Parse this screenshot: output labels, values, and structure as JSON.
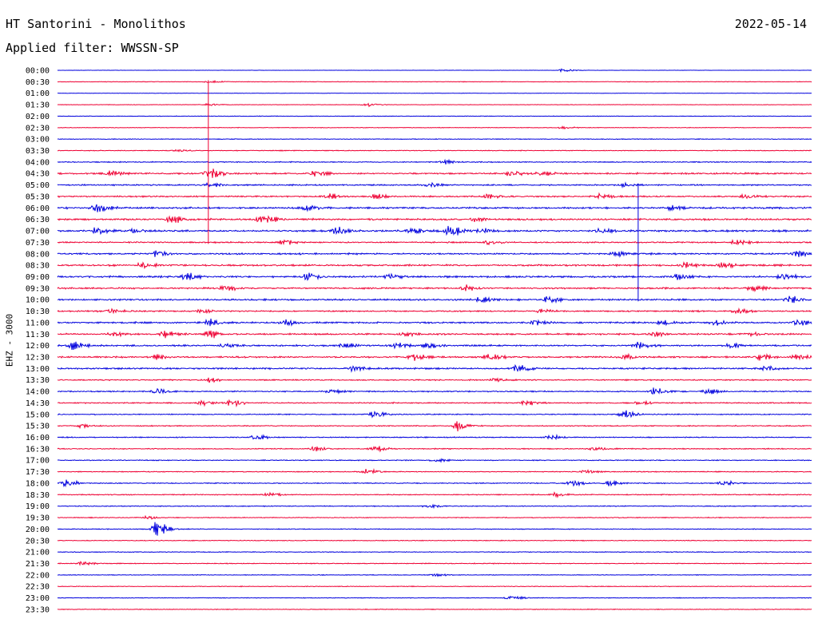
{
  "header": {
    "station": "HT Santorini - Monolithos",
    "date": "2022-05-14",
    "filter_line": "Applied filter: WWSSN-SP"
  },
  "channel_label": "EHZ - 3000",
  "colors": {
    "trace_a": "#0000dd",
    "trace_b": "#ee0033",
    "text": "#000000",
    "background": "#ffffff"
  },
  "chart_data": {
    "type": "line",
    "description_kind": "helicorder",
    "row_labels": [
      "00:00",
      "00:30",
      "01:00",
      "01:30",
      "02:00",
      "02:30",
      "03:00",
      "03:30",
      "04:00",
      "04:30",
      "05:00",
      "05:30",
      "06:00",
      "06:30",
      "07:00",
      "07:30",
      "08:00",
      "08:30",
      "09:00",
      "09:30",
      "10:00",
      "10:30",
      "11:00",
      "11:30",
      "12:00",
      "12:30",
      "13:00",
      "13:30",
      "14:00",
      "14:30",
      "15:00",
      "15:30",
      "16:00",
      "16:30",
      "17:00",
      "17:30",
      "18:00",
      "18:30",
      "19:00",
      "19:30",
      "20:00",
      "20:30",
      "21:00",
      "21:30",
      "22:00",
      "22:30",
      "23:00",
      "23:30"
    ],
    "row_minutes": 30,
    "alternating_colors": [
      "#0000dd",
      "#ee0033"
    ],
    "noise_levels": [
      0.3,
      0.6,
      0.4,
      0.5,
      0.6,
      0.6,
      0.7,
      0.8,
      1.0,
      1.6,
      1.4,
      1.4,
      1.8,
      1.8,
      1.8,
      1.4,
      1.6,
      1.8,
      1.8,
      1.6,
      1.6,
      1.4,
      1.6,
      1.6,
      1.6,
      1.6,
      1.6,
      1.2,
      1.2,
      1.2,
      1.0,
      1.0,
      1.0,
      1.0,
      0.9,
      0.9,
      1.0,
      1.0,
      0.9,
      0.8,
      0.8,
      0.8,
      0.8,
      0.8,
      0.7,
      0.7,
      0.7,
      0.7
    ],
    "events": [
      {
        "row": 0,
        "t": 0.67,
        "amp": 3
      },
      {
        "row": 1,
        "t": 0.2,
        "amp": 2
      },
      {
        "row": 3,
        "t": 0.2,
        "amp": 2
      },
      {
        "row": 3,
        "t": 0.41,
        "amp": 3
      },
      {
        "row": 5,
        "t": 0.67,
        "amp": 2
      },
      {
        "row": 7,
        "t": 0.16,
        "amp": 2
      },
      {
        "row": 8,
        "t": 0.51,
        "amp": 4
      },
      {
        "row": 9,
        "t": 0.07,
        "amp": 4
      },
      {
        "row": 9,
        "t": 0.2,
        "amp": 8
      },
      {
        "row": 9,
        "t": 0.34,
        "amp": 4
      },
      {
        "row": 9,
        "t": 0.6,
        "amp": 5
      },
      {
        "row": 9,
        "t": 0.64,
        "amp": 3
      },
      {
        "row": 10,
        "t": 0.2,
        "amp": 3
      },
      {
        "row": 10,
        "t": 0.49,
        "amp": 3
      },
      {
        "row": 10,
        "t": 0.75,
        "amp": 3
      },
      {
        "row": 11,
        "t": 0.36,
        "amp": 4
      },
      {
        "row": 11,
        "t": 0.42,
        "amp": 4
      },
      {
        "row": 11,
        "t": 0.57,
        "amp": 4
      },
      {
        "row": 11,
        "t": 0.72,
        "amp": 4
      },
      {
        "row": 11,
        "t": 0.91,
        "amp": 3
      },
      {
        "row": 12,
        "t": 0.05,
        "amp": 8
      },
      {
        "row": 12,
        "t": 0.33,
        "amp": 4
      },
      {
        "row": 12,
        "t": 0.81,
        "amp": 5
      },
      {
        "row": 13,
        "t": 0.15,
        "amp": 6
      },
      {
        "row": 13,
        "t": 0.27,
        "amp": 7
      },
      {
        "row": 13,
        "t": 0.55,
        "amp": 4
      },
      {
        "row": 14,
        "t": 0.05,
        "amp": 5
      },
      {
        "row": 14,
        "t": 0.1,
        "amp": 4
      },
      {
        "row": 14,
        "t": 0.37,
        "amp": 6
      },
      {
        "row": 14,
        "t": 0.47,
        "amp": 4
      },
      {
        "row": 14,
        "t": 0.52,
        "amp": 9
      },
      {
        "row": 14,
        "t": 0.56,
        "amp": 4
      },
      {
        "row": 14,
        "t": 0.72,
        "amp": 4
      },
      {
        "row": 15,
        "t": 0.3,
        "amp": 4
      },
      {
        "row": 15,
        "t": 0.57,
        "amp": 4
      },
      {
        "row": 15,
        "t": 0.9,
        "amp": 4
      },
      {
        "row": 16,
        "t": 0.13,
        "amp": 5
      },
      {
        "row": 16,
        "t": 0.74,
        "amp": 4
      },
      {
        "row": 16,
        "t": 0.98,
        "amp": 5
      },
      {
        "row": 17,
        "t": 0.11,
        "amp": 4
      },
      {
        "row": 17,
        "t": 0.83,
        "amp": 4
      },
      {
        "row": 17,
        "t": 0.88,
        "amp": 4
      },
      {
        "row": 18,
        "t": 0.17,
        "amp": 5
      },
      {
        "row": 18,
        "t": 0.33,
        "amp": 6
      },
      {
        "row": 18,
        "t": 0.44,
        "amp": 4
      },
      {
        "row": 18,
        "t": 0.82,
        "amp": 4
      },
      {
        "row": 18,
        "t": 0.96,
        "amp": 6
      },
      {
        "row": 19,
        "t": 0.22,
        "amp": 5
      },
      {
        "row": 19,
        "t": 0.54,
        "amp": 4
      },
      {
        "row": 19,
        "t": 0.92,
        "amp": 4
      },
      {
        "row": 20,
        "t": 0.56,
        "amp": 4
      },
      {
        "row": 20,
        "t": 0.65,
        "amp": 5
      },
      {
        "row": 20,
        "t": 0.97,
        "amp": 5
      },
      {
        "row": 21,
        "t": 0.07,
        "amp": 3
      },
      {
        "row": 21,
        "t": 0.19,
        "amp": 3
      },
      {
        "row": 21,
        "t": 0.64,
        "amp": 3
      },
      {
        "row": 21,
        "t": 0.9,
        "amp": 4
      },
      {
        "row": 22,
        "t": 0.2,
        "amp": 5
      },
      {
        "row": 22,
        "t": 0.3,
        "amp": 4
      },
      {
        "row": 22,
        "t": 0.63,
        "amp": 5
      },
      {
        "row": 22,
        "t": 0.8,
        "amp": 4
      },
      {
        "row": 22,
        "t": 0.87,
        "amp": 4
      },
      {
        "row": 22,
        "t": 0.98,
        "amp": 5
      },
      {
        "row": 23,
        "t": 0.07,
        "amp": 3
      },
      {
        "row": 23,
        "t": 0.14,
        "amp": 5
      },
      {
        "row": 23,
        "t": 0.2,
        "amp": 6
      },
      {
        "row": 23,
        "t": 0.46,
        "amp": 3
      },
      {
        "row": 23,
        "t": 0.79,
        "amp": 3
      },
      {
        "row": 23,
        "t": 0.92,
        "amp": 3
      },
      {
        "row": 24,
        "t": 0.02,
        "amp": 6
      },
      {
        "row": 24,
        "t": 0.22,
        "amp": 3
      },
      {
        "row": 24,
        "t": 0.38,
        "amp": 4
      },
      {
        "row": 24,
        "t": 0.45,
        "amp": 4
      },
      {
        "row": 24,
        "t": 0.49,
        "amp": 4
      },
      {
        "row": 24,
        "t": 0.77,
        "amp": 5
      },
      {
        "row": 24,
        "t": 0.89,
        "amp": 4
      },
      {
        "row": 25,
        "t": 0.13,
        "amp": 4
      },
      {
        "row": 25,
        "t": 0.47,
        "amp": 5
      },
      {
        "row": 25,
        "t": 0.57,
        "amp": 5
      },
      {
        "row": 25,
        "t": 0.75,
        "amp": 4
      },
      {
        "row": 25,
        "t": 0.93,
        "amp": 5
      },
      {
        "row": 25,
        "t": 0.98,
        "amp": 5
      },
      {
        "row": 26,
        "t": 0.39,
        "amp": 4
      },
      {
        "row": 26,
        "t": 0.61,
        "amp": 7
      },
      {
        "row": 26,
        "t": 0.94,
        "amp": 4
      },
      {
        "row": 27,
        "t": 0.2,
        "amp": 3
      },
      {
        "row": 27,
        "t": 0.58,
        "amp": 3
      },
      {
        "row": 28,
        "t": 0.13,
        "amp": 5
      },
      {
        "row": 28,
        "t": 0.36,
        "amp": 3
      },
      {
        "row": 28,
        "t": 0.79,
        "amp": 6
      },
      {
        "row": 28,
        "t": 0.86,
        "amp": 4
      },
      {
        "row": 29,
        "t": 0.19,
        "amp": 4
      },
      {
        "row": 29,
        "t": 0.23,
        "amp": 5
      },
      {
        "row": 29,
        "t": 0.62,
        "amp": 3
      },
      {
        "row": 29,
        "t": 0.77,
        "amp": 3
      },
      {
        "row": 30,
        "t": 0.42,
        "amp": 6
      },
      {
        "row": 30,
        "t": 0.75,
        "amp": 6
      },
      {
        "row": 31,
        "t": 0.03,
        "amp": 3
      },
      {
        "row": 31,
        "t": 0.53,
        "amp": 7
      },
      {
        "row": 32,
        "t": 0.26,
        "amp": 4
      },
      {
        "row": 32,
        "t": 0.65,
        "amp": 4
      },
      {
        "row": 33,
        "t": 0.34,
        "amp": 4
      },
      {
        "row": 33,
        "t": 0.42,
        "amp": 5
      },
      {
        "row": 33,
        "t": 0.71,
        "amp": 3
      },
      {
        "row": 34,
        "t": 0.5,
        "amp": 3
      },
      {
        "row": 35,
        "t": 0.41,
        "amp": 4
      },
      {
        "row": 35,
        "t": 0.7,
        "amp": 3
      },
      {
        "row": 36,
        "t": 0.01,
        "amp": 6
      },
      {
        "row": 36,
        "t": 0.68,
        "amp": 4
      },
      {
        "row": 36,
        "t": 0.73,
        "amp": 4
      },
      {
        "row": 36,
        "t": 0.88,
        "amp": 4
      },
      {
        "row": 37,
        "t": 0.28,
        "amp": 3
      },
      {
        "row": 37,
        "t": 0.66,
        "amp": 3
      },
      {
        "row": 38,
        "t": 0.49,
        "amp": 3
      },
      {
        "row": 39,
        "t": 0.12,
        "amp": 3
      },
      {
        "row": 40,
        "t": 0.13,
        "amp": 12
      },
      {
        "row": 43,
        "t": 0.03,
        "amp": 3
      },
      {
        "row": 44,
        "t": 0.5,
        "amp": 2
      },
      {
        "row": 46,
        "t": 0.6,
        "amp": 3
      }
    ],
    "spikes": [
      {
        "from_row": 1,
        "to_row": 15,
        "t": 0.2
      },
      {
        "from_row": 10,
        "to_row": 20,
        "t": 0.77
      }
    ]
  }
}
